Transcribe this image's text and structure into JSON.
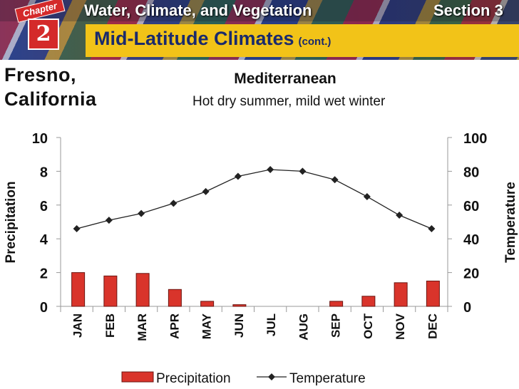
{
  "header": {
    "chapter_word": "Chapter",
    "chapter_number": "2",
    "subject": "Water, Climate, and Vegetation",
    "section": "Section 3",
    "title": "Mid-Latitude Climates",
    "title_suffix": "(cont.)",
    "colors": {
      "band": "#f2c318",
      "title": "#1a2a6c",
      "badge": "#d42a2a"
    }
  },
  "location": {
    "line1": "Fresno,",
    "line2": "California"
  },
  "climate": {
    "type": "Mediterranean",
    "description": "Hot dry summer, mild wet winter"
  },
  "chart_data": {
    "type": "bar+line",
    "categories": [
      "JAN",
      "FEB",
      "MAR",
      "APR",
      "MAY",
      "JUN",
      "JUL",
      "AUG",
      "SEP",
      "OCT",
      "NOV",
      "DEC"
    ],
    "series": [
      {
        "name": "Precipitation",
        "type": "bar",
        "axis": "left",
        "color": "#d9342b",
        "values": [
          2.0,
          1.8,
          1.95,
          1.0,
          0.3,
          0.1,
          0.0,
          0.0,
          0.3,
          0.6,
          1.4,
          1.5
        ]
      },
      {
        "name": "Temperature",
        "type": "line",
        "axis": "right",
        "color": "#222222",
        "values": [
          46,
          51,
          55,
          61,
          68,
          77,
          81,
          80,
          75,
          65,
          54,
          46
        ]
      }
    ],
    "ylabel": "Precipitation",
    "y2label": "Temperature",
    "ylim": [
      0,
      10
    ],
    "y2lim": [
      0,
      100
    ],
    "yticks": [
      "0",
      "2",
      "4",
      "6",
      "8",
      "10"
    ],
    "y2ticks": [
      "0",
      "20",
      "40",
      "60",
      "80",
      "100"
    ],
    "legend": [
      "Precipitation",
      "Temperature"
    ]
  }
}
